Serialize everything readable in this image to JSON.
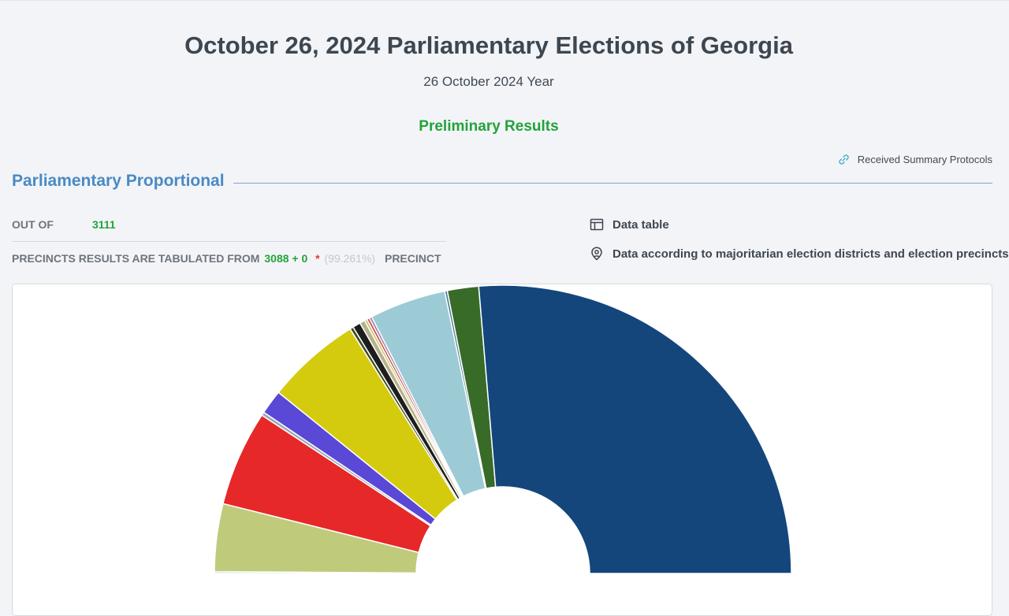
{
  "header": {
    "title": "October 26, 2024 Parliamentary Elections of Georgia",
    "date": "26 October 2024 Year",
    "status": "Preliminary Results"
  },
  "links": {
    "received_protocols": "Received Summary Protocols",
    "data_table": "Data table",
    "district_data": "Data according to majoritarian election districts and election precincts"
  },
  "section": {
    "title": "Parliamentary Proportional"
  },
  "tabulation": {
    "out_of_label": "OUT OF",
    "out_of_value": "3111",
    "precincts_label": "PRECINCTS RESULTS ARE TABULATED FROM",
    "precincts_value": "3088 + 0",
    "star": "*",
    "percent": "(99.261%)",
    "precinct_suffix": "PRECINCT"
  },
  "icons": {
    "link": "link-icon",
    "table": "table-icon",
    "location": "location-pin-icon"
  },
  "colors": {
    "accent_blue": "#4a8ac4",
    "status_green": "#22a33a",
    "star_red": "#e23a2a"
  },
  "chart_data": {
    "type": "pie",
    "variant": "semicircle-donut",
    "unit": "percent",
    "series": [
      {
        "value": 0.2,
        "color": "#b5c8d8"
      },
      {
        "value": 7.8,
        "color": "#bfcb7b"
      },
      {
        "value": 11.0,
        "color": "#e62828"
      },
      {
        "value": 0.4,
        "color": "#9aa6b8"
      },
      {
        "value": 2.8,
        "color": "#5a48d6"
      },
      {
        "value": 10.9,
        "color": "#d5cb0e"
      },
      {
        "value": 0.4,
        "color": "#3e4d22"
      },
      {
        "value": 0.9,
        "color": "#1e1e1e"
      },
      {
        "value": 0.6,
        "color": "#b7b28a"
      },
      {
        "value": 0.3,
        "color": "#c9c26f"
      },
      {
        "value": 0.3,
        "color": "#c94a3c"
      },
      {
        "value": 0.3,
        "color": "#9b7fb3"
      },
      {
        "value": 8.8,
        "color": "#9ccbd5"
      },
      {
        "value": 0.3,
        "color": "#4a7e9a"
      },
      {
        "value": 3.6,
        "color": "#386b28"
      },
      {
        "value": 54.1,
        "color": "#14467c"
      }
    ]
  }
}
